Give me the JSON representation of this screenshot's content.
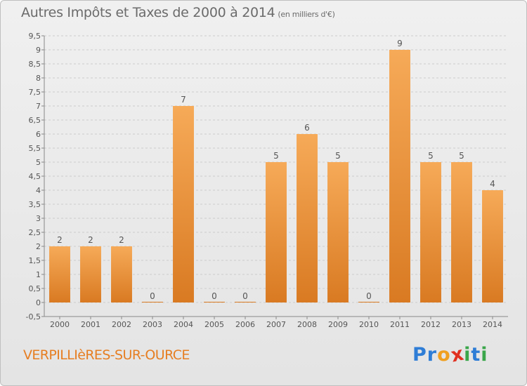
{
  "title": "Autres Impôts et Taxes de 2000 à 2014",
  "subtitle": "(en milliers d'€)",
  "place": "VERPILLIèRES-SUR-OURCE",
  "logo": {
    "letters": [
      {
        "ch": "P",
        "color": "#2e7dd6"
      },
      {
        "ch": "r",
        "color": "#2e7dd6"
      },
      {
        "ch": "o",
        "color": "#f0a020"
      },
      {
        "ch": "x",
        "color": "#e03020"
      },
      {
        "ch": "i",
        "color": "#3aa64a"
      },
      {
        "ch": "t",
        "color": "#2e7dd6"
      },
      {
        "ch": "i",
        "color": "#3aa64a"
      }
    ]
  },
  "colors": {
    "bar_light": "#f6aa58",
    "bar_dark": "#d97a22",
    "grid": "#cccccc",
    "axis": "#888888"
  },
  "chart_data": {
    "type": "bar",
    "categories": [
      "2000",
      "2001",
      "2002",
      "2003",
      "2004",
      "2005",
      "2006",
      "2007",
      "2008",
      "2009",
      "2010",
      "2011",
      "2012",
      "2013",
      "2014"
    ],
    "values": [
      2,
      2,
      2,
      0,
      7,
      0,
      0,
      5,
      6,
      5,
      0,
      9,
      5,
      5,
      4
    ],
    "ylim": [
      -0.5,
      9.5
    ],
    "yticks": [
      "-0,5",
      "0",
      "0,5",
      "1",
      "1,5",
      "2",
      "2,5",
      "3",
      "3,5",
      "4",
      "4,5",
      "5",
      "5,5",
      "6",
      "6,5",
      "7",
      "7,5",
      "8",
      "8,5",
      "9",
      "9,5"
    ],
    "grid": "dashed horizontal",
    "legend": "none"
  }
}
